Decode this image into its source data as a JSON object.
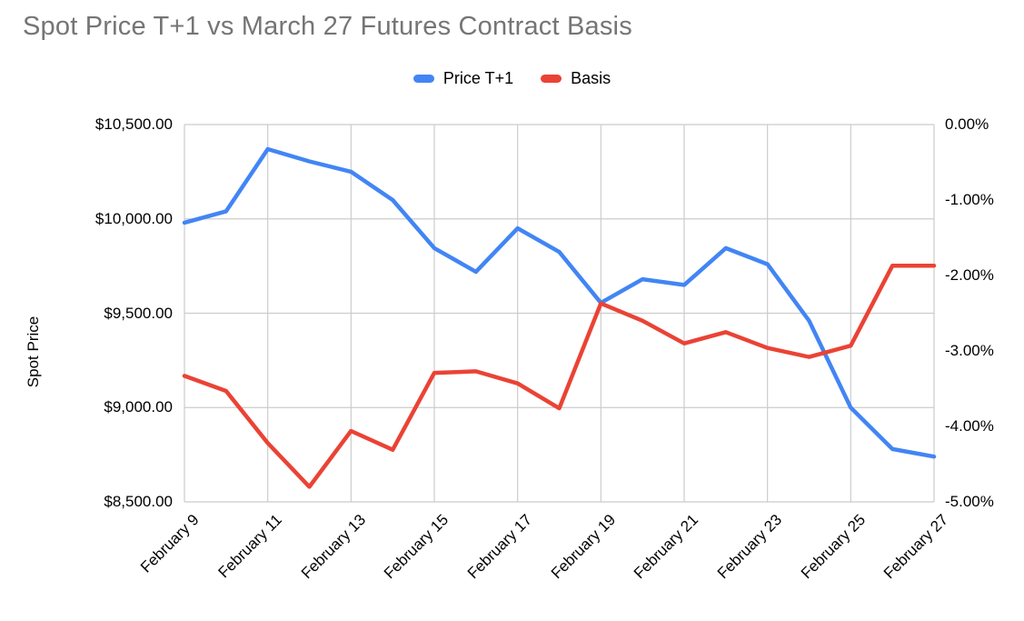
{
  "chart_data": {
    "type": "line",
    "title": "Spot Price T+1 vs March 27 Futures Contract Basis",
    "legend_position": "top",
    "grid": "horizontal_and_vertical",
    "x_dates": [
      "February 9",
      "February 10",
      "February 11",
      "February 12",
      "February 13",
      "February 14",
      "February 15",
      "February 16",
      "February 17",
      "February 18",
      "February 19",
      "February 20",
      "February 21",
      "February 22",
      "February 23",
      "February 24",
      "February 25",
      "February 26",
      "February 27"
    ],
    "x_tick_labels": [
      "February 9",
      "February 11",
      "February 13",
      "February 15",
      "February 17",
      "February 19",
      "February 21",
      "February 23",
      "February 25",
      "February 27"
    ],
    "y_left": {
      "title": "Spot Price",
      "min": 8500,
      "max": 10500,
      "tick_values": [
        10500,
        10000,
        9500,
        9000,
        8500
      ],
      "tick_labels": [
        "$10,500.00",
        "$10,000.00",
        "$9,500.00",
        "$9,000.00",
        "$8,500.00"
      ]
    },
    "y_right": {
      "min": -5,
      "max": 0,
      "tick_values": [
        0,
        -1,
        -2,
        -3,
        -4,
        -5
      ],
      "tick_labels": [
        "0.00%",
        "-1.00%",
        "-2.00%",
        "-3.00%",
        "-4.00%",
        "-5.00%"
      ]
    },
    "series": [
      {
        "name": "Price T+1",
        "axis": "left",
        "color": "#4285F4",
        "values": [
          9980,
          10040,
          10370,
          10305,
          10250,
          10100,
          9845,
          9720,
          9950,
          9825,
          9555,
          9680,
          9650,
          9845,
          9760,
          9460,
          9000,
          8780,
          8740
        ]
      },
      {
        "name": "Basis",
        "axis": "right",
        "color": "#EA4335",
        "values": [
          -3.33,
          -3.53,
          -4.22,
          -4.8,
          -4.06,
          -4.31,
          -3.29,
          -3.27,
          -3.43,
          -3.76,
          -2.37,
          -2.6,
          -2.9,
          -2.75,
          -2.96,
          -3.08,
          -2.93,
          -1.87,
          -1.87
        ]
      }
    ],
    "colors": {
      "title_text": "#757575",
      "axis_text": "#000000",
      "gridline": "#cccccc",
      "background": "#ffffff"
    }
  }
}
